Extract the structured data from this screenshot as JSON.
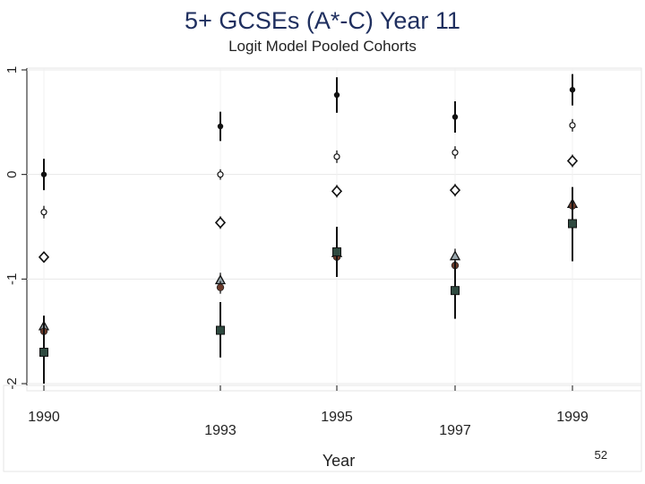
{
  "slide": {
    "page_number": "52"
  },
  "chart_data": {
    "type": "scatter",
    "title": "5+ GCSEs (A*-C) Year 11",
    "subtitle": "Logit Model Pooled Cohorts",
    "xlabel": "Year",
    "ylabel": "",
    "x_ticks": [
      "1990",
      "1993",
      "1995",
      "1997",
      "1999"
    ],
    "y_ticks": [
      "-2",
      "-1",
      "0",
      "1"
    ],
    "ylim": [
      -2,
      1
    ],
    "grid": true,
    "series": [
      {
        "marker": "filled-circle",
        "color": "#111111",
        "points": [
          {
            "x": "1990",
            "y": 0.0,
            "lo": -0.15,
            "hi": 0.15
          },
          {
            "x": "1993",
            "y": 0.46,
            "lo": 0.32,
            "hi": 0.6
          },
          {
            "x": "1995",
            "y": 0.76,
            "lo": 0.59,
            "hi": 0.93
          },
          {
            "x": "1997",
            "y": 0.55,
            "lo": 0.4,
            "hi": 0.7
          },
          {
            "x": "1999",
            "y": 0.81,
            "lo": 0.66,
            "hi": 0.96
          }
        ]
      },
      {
        "marker": "small-hollow-circle",
        "color": "#111111",
        "points": [
          {
            "x": "1990",
            "y": -0.36,
            "lo": -0.42,
            "hi": -0.3
          },
          {
            "x": "1993",
            "y": 0.0,
            "lo": -0.05,
            "hi": 0.05
          },
          {
            "x": "1995",
            "y": 0.17,
            "lo": 0.11,
            "hi": 0.23
          },
          {
            "x": "1997",
            "y": 0.21,
            "lo": 0.15,
            "hi": 0.27
          },
          {
            "x": "1999",
            "y": 0.47,
            "lo": 0.41,
            "hi": 0.53
          }
        ]
      },
      {
        "marker": "hollow-diamond",
        "color": "#111111",
        "points": [
          {
            "x": "1990",
            "y": -0.79,
            "lo": -0.84,
            "hi": -0.74
          },
          {
            "x": "1993",
            "y": -0.46,
            "lo": -0.52,
            "hi": -0.4
          },
          {
            "x": "1995",
            "y": -0.16,
            "lo": -0.22,
            "hi": -0.1
          },
          {
            "x": "1997",
            "y": -0.15,
            "lo": -0.21,
            "hi": -0.09
          },
          {
            "x": "1999",
            "y": 0.13,
            "lo": 0.07,
            "hi": 0.19
          }
        ]
      },
      {
        "marker": "hollow-triangle",
        "color": "#111111",
        "points": [
          {
            "x": "1990",
            "y": -1.45,
            "lo": -1.52,
            "hi": -1.38
          },
          {
            "x": "1993",
            "y": -1.01,
            "lo": -1.08,
            "hi": -0.94
          },
          {
            "x": "1995",
            "y": -0.75,
            "lo": -0.82,
            "hi": -0.68
          },
          {
            "x": "1997",
            "y": -0.78,
            "lo": -0.85,
            "hi": -0.71
          },
          {
            "x": "1999",
            "y": -0.28,
            "lo": -0.35,
            "hi": -0.21
          }
        ]
      },
      {
        "marker": "filled-circle-brown",
        "color": "#6b3a2a",
        "points": [
          {
            "x": "1990",
            "y": -1.5,
            "lo": -1.56,
            "hi": -1.44
          },
          {
            "x": "1993",
            "y": -1.08,
            "lo": -1.14,
            "hi": -1.02
          },
          {
            "x": "1995",
            "y": -0.79,
            "lo": -0.85,
            "hi": -0.73
          },
          {
            "x": "1997",
            "y": -0.87,
            "lo": -0.93,
            "hi": -0.81
          },
          {
            "x": "1999",
            "y": -0.3,
            "lo": -0.36,
            "hi": -0.24
          }
        ]
      },
      {
        "marker": "filled-square",
        "color": "#2f4a40",
        "points": [
          {
            "x": "1990",
            "y": -1.7,
            "lo": -2.0,
            "hi": -1.35
          },
          {
            "x": "1993",
            "y": -1.49,
            "lo": -1.75,
            "hi": -1.22
          },
          {
            "x": "1995",
            "y": -0.74,
            "lo": -0.98,
            "hi": -0.5
          },
          {
            "x": "1997",
            "y": -1.11,
            "lo": -1.38,
            "hi": -0.83
          },
          {
            "x": "1999",
            "y": -0.47,
            "lo": -0.83,
            "hi": -0.12
          }
        ]
      }
    ]
  }
}
